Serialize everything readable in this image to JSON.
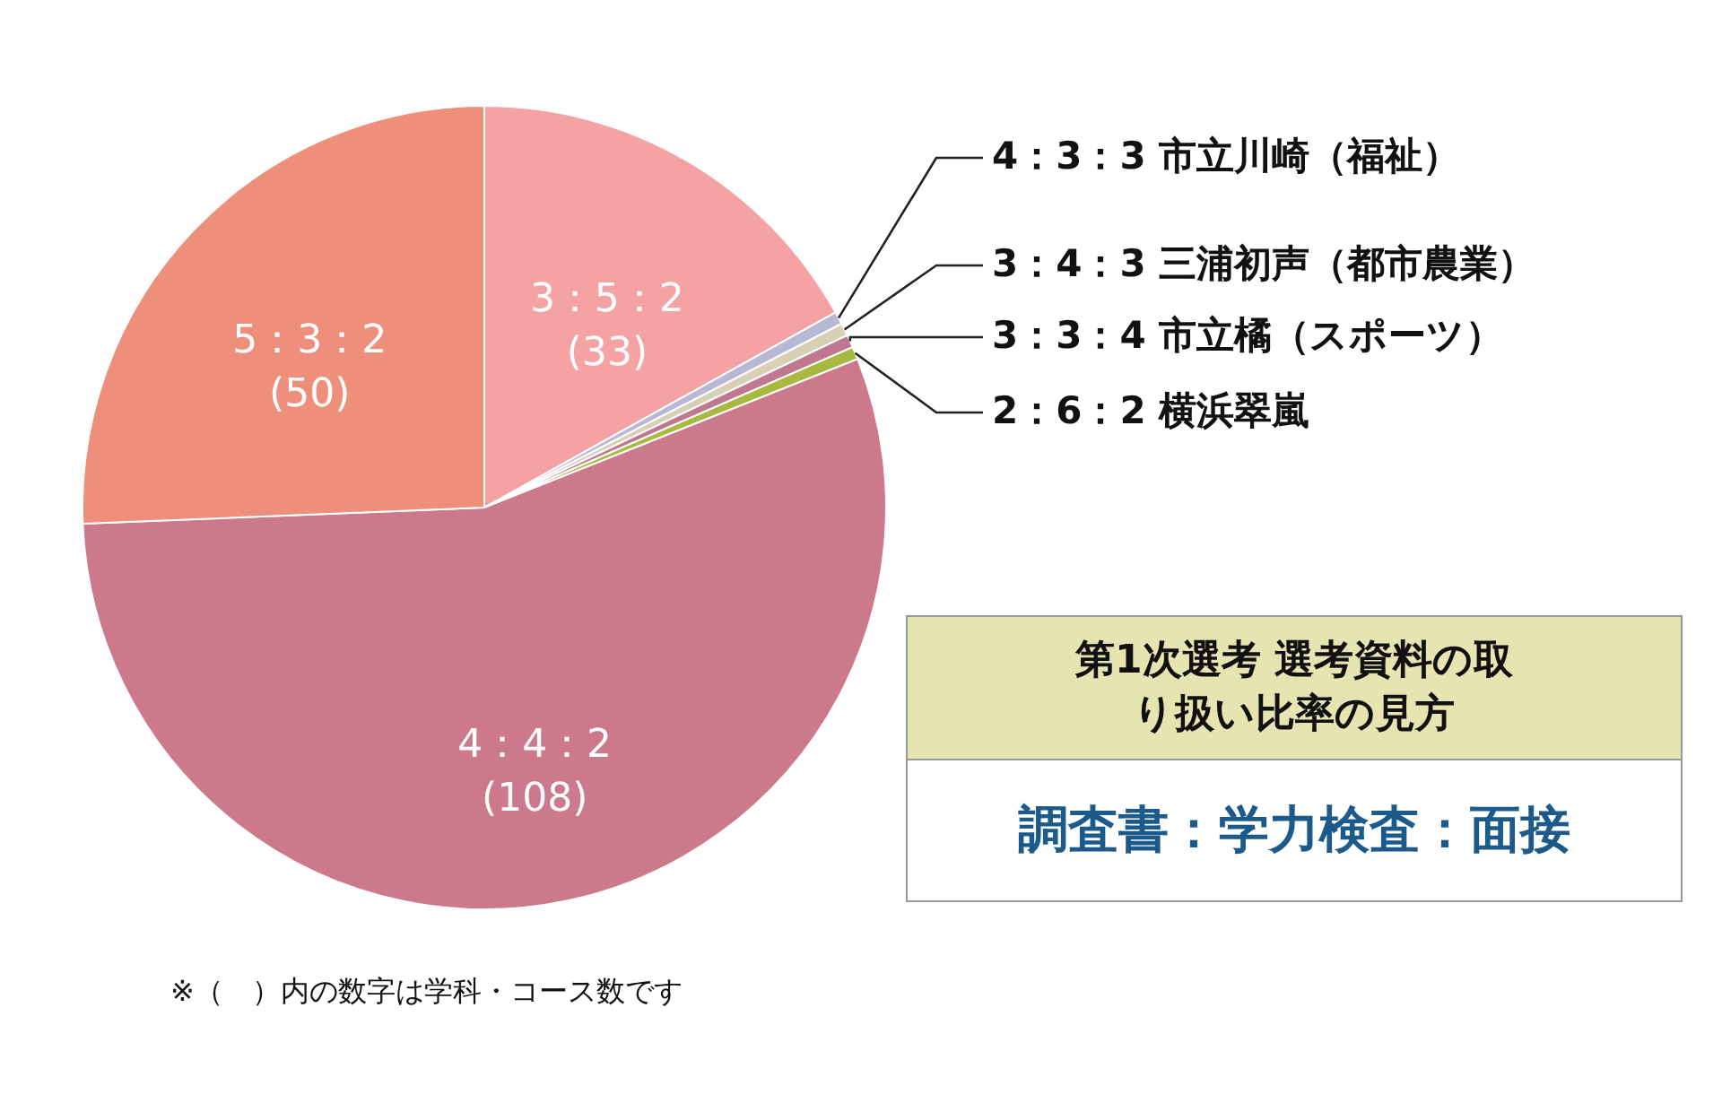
{
  "chart_data": {
    "type": "pie",
    "categories": [
      "3：5：2",
      "4：3：3 市立川崎（福祉）",
      "3：4：3 三浦初声（都市農業）",
      "3：3：4 市立橘（スポーツ）",
      "2：6：2 横浜翠嵐",
      "4：4：2",
      "5：3：2"
    ],
    "values": [
      33,
      1,
      1,
      1,
      1,
      108,
      50
    ],
    "value_labels": [
      "(33)",
      null,
      null,
      null,
      null,
      "(108)",
      "(50)"
    ],
    "colors": [
      "#f4a2a4",
      "#b8b8d4",
      "#d8d0b4",
      "#c07890",
      "#a8b840",
      "#cc7a8b",
      "#ee8f7b"
    ],
    "annotations": [
      "第1次選考 選考資料の取り扱い比率の見方",
      "調査書：学力検査：面接",
      "※（　）内の数字は学科・コース数です"
    ]
  }
}
